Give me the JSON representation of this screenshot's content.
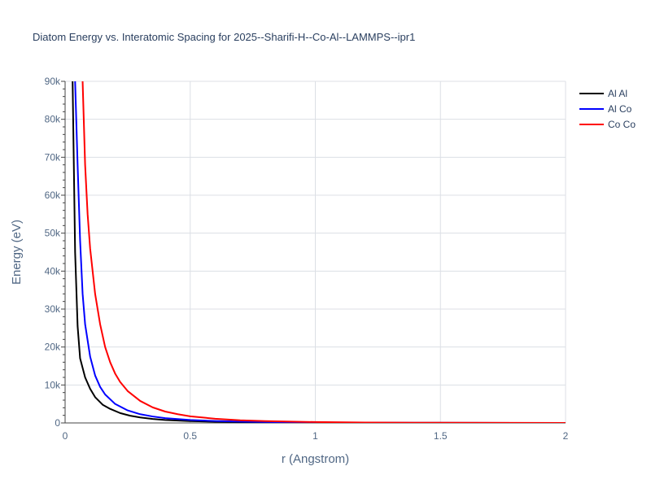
{
  "chart_data": {
    "type": "line",
    "title": "Diatom Energy vs. Interatomic Spacing for 2025--Sharifi-H--Co-Al--LAMMPS--ipr1",
    "xlabel": "r (Angstrom)",
    "ylabel": "Energy (eV)",
    "xlim": [
      0,
      2
    ],
    "ylim": [
      0,
      90000
    ],
    "x_ticks": [
      0,
      0.5,
      1,
      1.5,
      2
    ],
    "x_tick_labels": [
      "0",
      "0.5",
      "1",
      "1.5",
      "2"
    ],
    "y_ticks": [
      0,
      10000,
      20000,
      30000,
      40000,
      50000,
      60000,
      70000,
      80000,
      90000
    ],
    "y_tick_labels": [
      "0",
      "10k",
      "20k",
      "30k",
      "40k",
      "50k",
      "60k",
      "70k",
      "80k",
      "90k"
    ],
    "grid": true,
    "legend_position": "top-right",
    "series": [
      {
        "name": "Al Al",
        "color": "#000000",
        "x": [
          0.03,
          0.04,
          0.05,
          0.06,
          0.08,
          0.1,
          0.12,
          0.15,
          0.18,
          0.22,
          0.26,
          0.3,
          0.35,
          0.4,
          0.5,
          0.6,
          0.7,
          0.8,
          1.0,
          1.2,
          1.5,
          2.0
        ],
        "y": [
          90000,
          45000,
          25500,
          17000,
          12000,
          9000,
          6800,
          4800,
          3700,
          2600,
          1900,
          1450,
          1050,
          780,
          480,
          310,
          210,
          150,
          80,
          40,
          15,
          0
        ]
      },
      {
        "name": "Al Co",
        "color": "#0000ff",
        "x": [
          0.04,
          0.05,
          0.06,
          0.07,
          0.08,
          0.1,
          0.12,
          0.14,
          0.16,
          0.2,
          0.25,
          0.3,
          0.35,
          0.4,
          0.5,
          0.6,
          0.7,
          0.8,
          1.0,
          1.2,
          1.5,
          2.0
        ],
        "y": [
          90000,
          68000,
          48000,
          34000,
          26000,
          17500,
          12500,
          9500,
          7500,
          5000,
          3300,
          2300,
          1700,
          1250,
          780,
          500,
          340,
          240,
          120,
          60,
          20,
          0
        ]
      },
      {
        "name": "Co Co",
        "color": "#ff0000",
        "x": [
          0.07,
          0.08,
          0.09,
          0.1,
          0.11,
          0.12,
          0.14,
          0.16,
          0.18,
          0.2,
          0.22,
          0.25,
          0.3,
          0.35,
          0.4,
          0.45,
          0.5,
          0.6,
          0.7,
          0.8,
          1.0,
          1.2,
          1.5,
          2.0
        ],
        "y": [
          90000,
          68000,
          55000,
          46000,
          40000,
          34000,
          26000,
          20000,
          16000,
          13000,
          10800,
          8400,
          5800,
          4100,
          3000,
          2300,
          1750,
          1100,
          700,
          470,
          230,
          110,
          40,
          0
        ]
      }
    ]
  }
}
